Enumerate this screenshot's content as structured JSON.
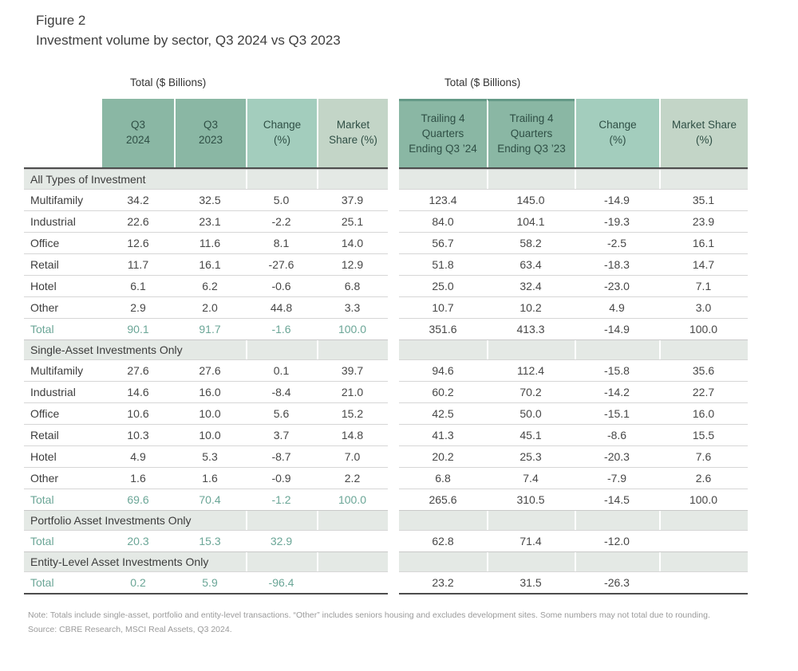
{
  "page_title": {
    "figure_label": "Figure 2",
    "subtitle": "Investment volume by sector, Q3 2024 vs Q3 2023"
  },
  "colors": {
    "header_dark": "#8ab7a4",
    "header_change": "#a3cdbd",
    "header_market_share": "#c3d5c7",
    "section_band": "#e4e9e5",
    "total_text": "#6ba697",
    "body_text": "#474747",
    "table_border_dark": "#4d4d4d"
  },
  "chart_data": {
    "type": "table",
    "left_caption": "Total ($ Billions)",
    "right_caption": "Total ($ Billions)",
    "left_headers": [
      "Q3\n2024",
      "Q3\n2023",
      "Change\n(%)",
      "Market\nShare (%)"
    ],
    "right_headers": [
      "Trailing 4\nQuarters\nEnding Q3 ’24",
      "Trailing 4\nQuarters\nEnding Q3 ’23",
      "Change\n(%)",
      "Market Share\n(%)"
    ],
    "sections": [
      {
        "label": "All Types of Investment",
        "rows": [
          {
            "label": "Multifamily",
            "left": [
              "34.2",
              "32.5",
              "5.0",
              "37.9"
            ],
            "right": [
              "123.4",
              "145.0",
              "-14.9",
              "35.1"
            ]
          },
          {
            "label": "Industrial",
            "left": [
              "22.6",
              "23.1",
              "-2.2",
              "25.1"
            ],
            "right": [
              "84.0",
              "104.1",
              "-19.3",
              "23.9"
            ]
          },
          {
            "label": "Office",
            "left": [
              "12.6",
              "11.6",
              "8.1",
              "14.0"
            ],
            "right": [
              "56.7",
              "58.2",
              "-2.5",
              "16.1"
            ]
          },
          {
            "label": "Retail",
            "left": [
              "11.7",
              "16.1",
              "-27.6",
              "12.9"
            ],
            "right": [
              "51.8",
              "63.4",
              "-18.3",
              "14.7"
            ]
          },
          {
            "label": "Hotel",
            "left": [
              "6.1",
              "6.2",
              "-0.6",
              "6.8"
            ],
            "right": [
              "25.0",
              "32.4",
              "-23.0",
              "7.1"
            ]
          },
          {
            "label": "Other",
            "left": [
              "2.9",
              "2.0",
              "44.8",
              "3.3"
            ],
            "right": [
              "10.7",
              "10.2",
              "4.9",
              "3.0"
            ]
          }
        ],
        "total": {
          "label": "Total",
          "left": [
            "90.1",
            "91.7",
            "-1.6",
            "100.0"
          ],
          "right": [
            "351.6",
            "413.3",
            "-14.9",
            "100.0"
          ]
        }
      },
      {
        "label": "Single-Asset Investments Only",
        "rows": [
          {
            "label": "Multifamily",
            "left": [
              "27.6",
              "27.6",
              "0.1",
              "39.7"
            ],
            "right": [
              "94.6",
              "112.4",
              "-15.8",
              "35.6"
            ]
          },
          {
            "label": "Industrial",
            "left": [
              "14.6",
              "16.0",
              "-8.4",
              "21.0"
            ],
            "right": [
              "60.2",
              "70.2",
              "-14.2",
              "22.7"
            ]
          },
          {
            "label": "Office",
            "left": [
              "10.6",
              "10.0",
              "5.6",
              "15.2"
            ],
            "right": [
              "42.5",
              "50.0",
              "-15.1",
              "16.0"
            ]
          },
          {
            "label": "Retail",
            "left": [
              "10.3",
              "10.0",
              "3.7",
              "14.8"
            ],
            "right": [
              "41.3",
              "45.1",
              "-8.6",
              "15.5"
            ]
          },
          {
            "label": "Hotel",
            "left": [
              "4.9",
              "5.3",
              "-8.7",
              "7.0"
            ],
            "right": [
              "20.2",
              "25.3",
              "-20.3",
              "7.6"
            ]
          },
          {
            "label": "Other",
            "left": [
              "1.6",
              "1.6",
              "-0.9",
              "2.2"
            ],
            "right": [
              "6.8",
              "7.4",
              "-7.9",
              "2.6"
            ]
          }
        ],
        "total": {
          "label": "Total",
          "left": [
            "69.6",
            "70.4",
            "-1.2",
            "100.0"
          ],
          "right": [
            "265.6",
            "310.5",
            "-14.5",
            "100.0"
          ]
        }
      },
      {
        "label": "Portfolio Asset Investments Only",
        "rows": [],
        "total": {
          "label": "Total",
          "left": [
            "20.3",
            "15.3",
            "32.9",
            ""
          ],
          "right": [
            "62.8",
            "71.4",
            "-12.0",
            ""
          ]
        }
      },
      {
        "label": "Entity-Level Asset Investments Only",
        "rows": [],
        "total": {
          "label": "Total",
          "left": [
            "0.2",
            "5.9",
            "-96.4",
            ""
          ],
          "right": [
            "23.2",
            "31.5",
            "-26.3",
            ""
          ]
        }
      }
    ],
    "note": "Note: Totals include single-asset, portfolio and entity-level transactions. “Other” includes seniors housing and excludes development sites. Some numbers may not total due to rounding.",
    "source": "Source: CBRE Research, MSCI Real Assets, Q3 2024."
  }
}
